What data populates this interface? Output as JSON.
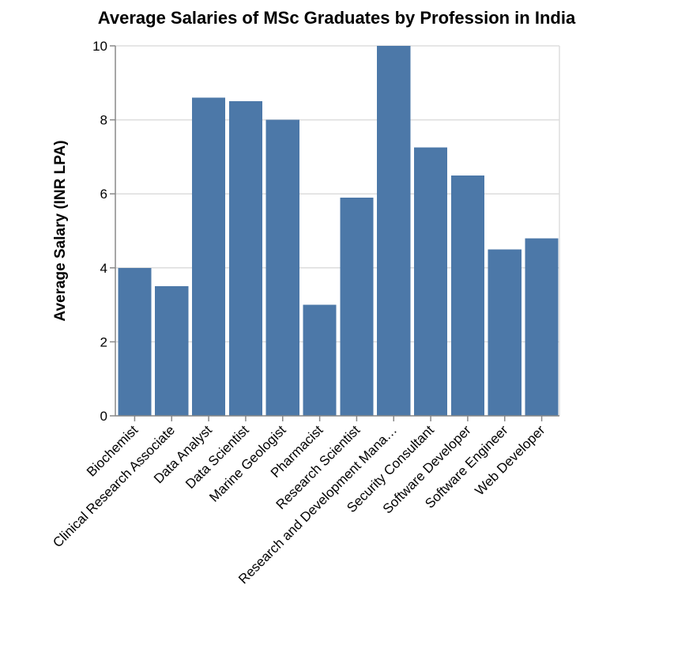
{
  "chart_data": {
    "type": "bar",
    "title": "Average Salaries of MSc Graduates by Profession in India",
    "xlabel": "",
    "ylabel": "Average Salary (INR LPA)",
    "ylim": [
      0,
      10
    ],
    "yticks": [
      0,
      2,
      4,
      6,
      8,
      10
    ],
    "grid": true,
    "legend": null,
    "bar_color": "#4c78a8",
    "categories": [
      "Biochemist",
      "Clinical Research Associate",
      "Data Analyst",
      "Data Scientist",
      "Marine Geologist",
      "Pharmacist",
      "Research Scientist",
      "Research and Development Manager",
      "Security Consultant",
      "Software Developer",
      "Software Engineer",
      "Web Developer"
    ],
    "category_labels_display": [
      "Biochemist",
      "Clinical Research Associate",
      "Data Analyst",
      "Data Scientist",
      "Marine Geologist",
      "Pharmacist",
      "Research Scientist",
      "Research and Development Mana…",
      "Security Consultant",
      "Software Developer",
      "Software Engineer",
      "Web Developer"
    ],
    "values": [
      4.0,
      3.5,
      8.6,
      8.5,
      8.0,
      3.0,
      5.9,
      10.0,
      7.25,
      6.5,
      4.5,
      4.8
    ]
  },
  "colors": {
    "bar": "#4c78a8",
    "grid": "#dddddd",
    "axis": "#888888",
    "text": "#000000",
    "background": "#ffffff"
  }
}
